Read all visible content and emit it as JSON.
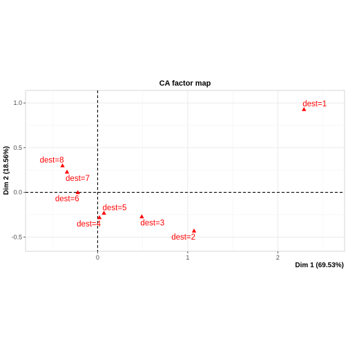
{
  "chart_data": {
    "type": "scatter",
    "title": "CA factor map",
    "xlabel": "Dim 1 (69.53%)",
    "ylabel": "Dim 2 (18.56%)",
    "xlim": [
      -0.8,
      2.74
    ],
    "ylim": [
      -0.66,
      1.14
    ],
    "x_ticks": [
      0,
      1,
      2
    ],
    "y_ticks": [
      -0.5,
      0.0,
      0.5,
      1.0
    ],
    "x_tick_labels": [
      "0",
      "1",
      "2"
    ],
    "y_tick_labels": [
      "-0.5",
      "0.0",
      "0.5",
      "1.0"
    ],
    "grid": true,
    "reference_lines": {
      "x": 0,
      "y": 0,
      "style": "dashed"
    },
    "point_color": "#ff0000",
    "marker": "triangle",
    "points": [
      {
        "label": "dest=1",
        "x": 2.29,
        "y": 0.93,
        "label_pos": "top-right"
      },
      {
        "label": "dest=2",
        "x": 1.07,
        "y": -0.43,
        "label_pos": "bottom-left"
      },
      {
        "label": "dest=3",
        "x": 0.49,
        "y": -0.27,
        "label_pos": "bottom-right"
      },
      {
        "label": "dest=4",
        "x": 0.02,
        "y": -0.28,
        "label_pos": "bottom-left"
      },
      {
        "label": "dest=5",
        "x": 0.07,
        "y": -0.23,
        "label_pos": "top-right"
      },
      {
        "label": "dest=6",
        "x": -0.22,
        "y": 0.0,
        "label_pos": "bottom-left"
      },
      {
        "label": "dest=7",
        "x": -0.34,
        "y": 0.23,
        "label_pos": "bottom-right"
      },
      {
        "label": "dest=8",
        "x": -0.39,
        "y": 0.3,
        "label_pos": "top-left"
      }
    ]
  }
}
